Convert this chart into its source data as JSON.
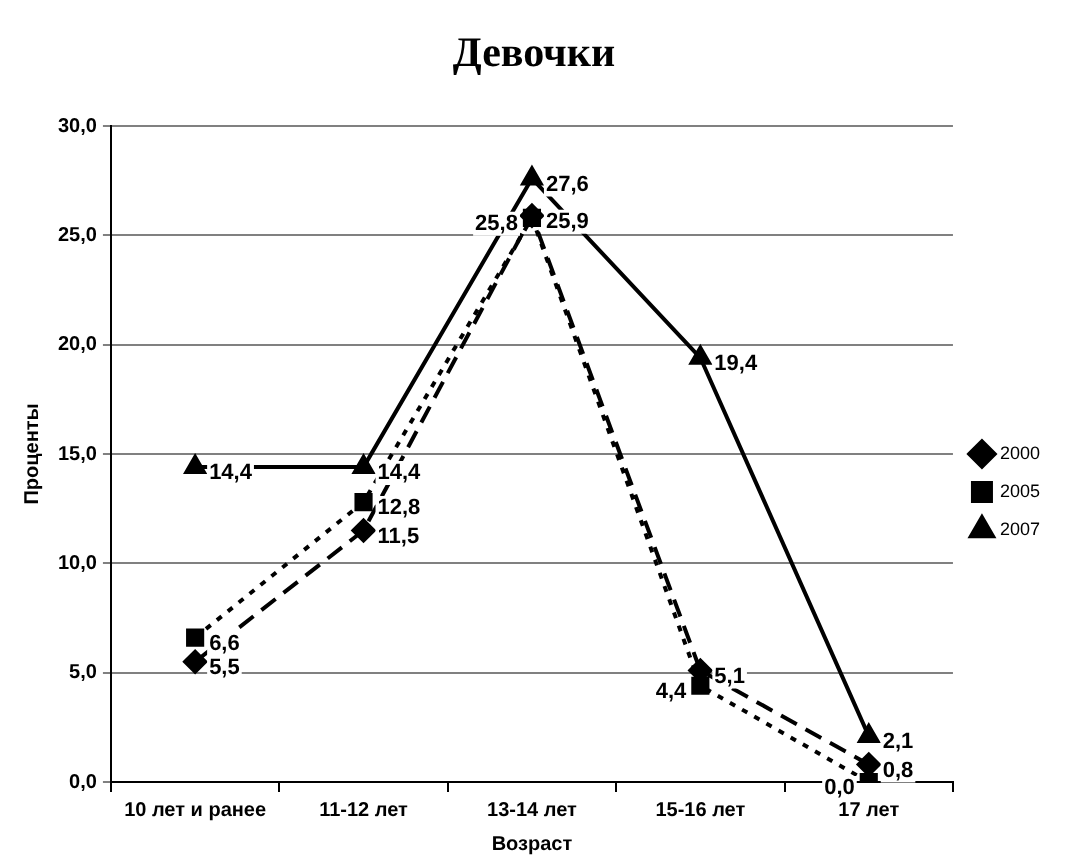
{
  "chart_data": {
    "type": "line",
    "title": "Девочки",
    "xlabel": "Возраст",
    "ylabel": "Проценты",
    "categories": [
      "10 лет и ранее",
      "11-12 лет",
      "13-14 лет",
      "15-16 лет",
      "17 лет"
    ],
    "series": [
      {
        "name": "2000",
        "color": "#000000",
        "values": [
          5.5,
          11.5,
          25.9,
          5.1,
          0.8
        ],
        "value_labels": [
          "5,5",
          "11,5",
          "25,9",
          "5,1",
          "0,8"
        ],
        "marker": "diamond",
        "line_style": "dashed"
      },
      {
        "name": "2005",
        "color": "#000000",
        "values": [
          6.6,
          12.8,
          25.8,
          4.4,
          0.0
        ],
        "value_labels": [
          "6,6",
          "12,8",
          "25,8",
          "4,4",
          "0,0"
        ],
        "marker": "square",
        "line_style": "dotted"
      },
      {
        "name": "2007",
        "color": "#000000",
        "values": [
          14.4,
          14.4,
          27.6,
          19.4,
          2.1
        ],
        "value_labels": [
          "14,4",
          "14,4",
          "27,6",
          "19,4",
          "2,1"
        ],
        "marker": "triangle",
        "line_style": "solid"
      }
    ],
    "ylim": [
      0,
      30
    ],
    "yticks": [
      {
        "value": 0,
        "label": "0,0"
      },
      {
        "value": 5,
        "label": "5,0"
      },
      {
        "value": 10,
        "label": "10,0"
      },
      {
        "value": 15,
        "label": "15,0"
      },
      {
        "value": 20,
        "label": "20,0"
      },
      {
        "value": 25,
        "label": "25,0"
      },
      {
        "value": 30,
        "label": "30,0"
      }
    ],
    "grid": "y",
    "legend": "right"
  }
}
